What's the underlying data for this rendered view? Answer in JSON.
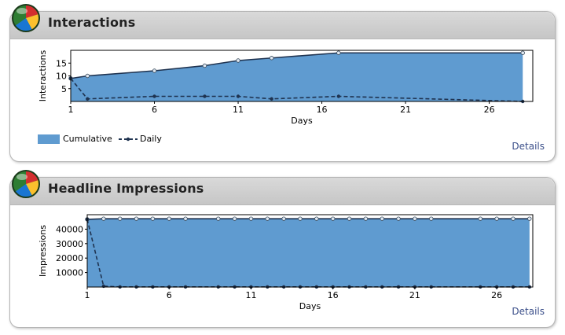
{
  "colors": {
    "area_fill": "#5f9bd0",
    "line": "#1f3350",
    "link": "#3b4f8a",
    "header_bg": "#cfcfcf"
  },
  "panels": [
    {
      "title": "Interactions",
      "icon": "pie-chart-icon",
      "details_label": "Details",
      "legend": {
        "cumulative_label": "Cumulative",
        "daily_label": "Daily"
      }
    },
    {
      "title": "Headline Impressions",
      "icon": "pie-chart-icon",
      "details_label": "Details"
    }
  ],
  "chart_data": [
    {
      "type": "area",
      "xlabel": "Days",
      "ylabel": "Interactions",
      "xlim": [
        1,
        28.6
      ],
      "ylim": [
        0,
        20
      ],
      "xticks": [
        1,
        6,
        11,
        16,
        21,
        26
      ],
      "yticks": [
        5,
        10,
        15
      ],
      "grid": false,
      "legend": "bottom-left",
      "series": [
        {
          "name": "Cumulative",
          "style": "area",
          "x": [
            1,
            2,
            6,
            9,
            11,
            13,
            17,
            28
          ],
          "values": [
            9,
            10,
            12,
            14,
            16,
            17,
            19,
            19
          ]
        },
        {
          "name": "Daily",
          "style": "dashed-line",
          "x": [
            1,
            2,
            6,
            9,
            11,
            13,
            17,
            28
          ],
          "values": [
            9,
            1,
            2,
            2,
            2,
            1,
            2,
            0
          ]
        }
      ]
    },
    {
      "type": "area",
      "xlabel": "Days",
      "ylabel": "Impressions",
      "xlim": [
        1,
        28.2
      ],
      "ylim": [
        0,
        50000
      ],
      "xticks": [
        1,
        6,
        11,
        16,
        21,
        26
      ],
      "yticks": [
        10000,
        20000,
        30000,
        40000
      ],
      "grid": false,
      "legend": "none",
      "series": [
        {
          "name": "Cumulative",
          "style": "area",
          "x": [
            1,
            2,
            3,
            4,
            5,
            6,
            7,
            9,
            10,
            11,
            12,
            13,
            14,
            15,
            16,
            17,
            18,
            19,
            20,
            21,
            22,
            25,
            26,
            27,
            28
          ],
          "values": [
            46800,
            47200,
            47200,
            47200,
            47200,
            47200,
            47200,
            47200,
            47200,
            47200,
            47200,
            47200,
            47200,
            47200,
            47200,
            47200,
            47200,
            47200,
            47200,
            47200,
            47200,
            47200,
            47200,
            47200,
            47200
          ]
        },
        {
          "name": "Daily",
          "style": "dashed-line",
          "x": [
            1,
            2,
            3,
            4,
            5,
            6,
            7,
            9,
            10,
            11,
            12,
            13,
            14,
            15,
            16,
            17,
            18,
            19,
            20,
            21,
            22,
            25,
            26,
            27,
            28
          ],
          "values": [
            46800,
            600,
            100,
            100,
            100,
            100,
            100,
            100,
            100,
            100,
            100,
            100,
            100,
            100,
            100,
            100,
            100,
            100,
            100,
            100,
            100,
            100,
            100,
            100,
            100
          ]
        }
      ]
    }
  ]
}
